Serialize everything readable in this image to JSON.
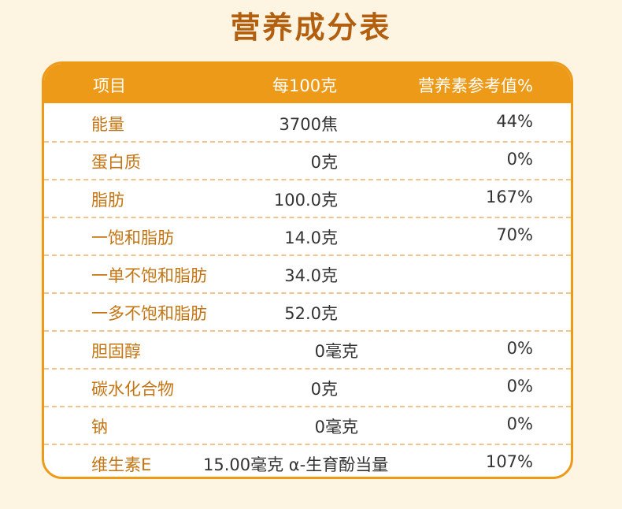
{
  "title": "营养成分表",
  "header": {
    "item": "项目",
    "per100": "每100克",
    "nrv": "营养素参考值%"
  },
  "rows": [
    {
      "name": "能量",
      "amount": "3700焦",
      "nrv": "44%"
    },
    {
      "name": "蛋白质",
      "amount": "0克",
      "nrv": "0%"
    },
    {
      "name": "脂肪",
      "amount": "100.0克",
      "nrv": "167%"
    },
    {
      "name": "一饱和脂肪",
      "amount": "14.0克",
      "nrv": "70%"
    },
    {
      "name": "一单不饱和脂肪",
      "amount": "34.0克",
      "nrv": ""
    },
    {
      "name": "一多不饱和脂肪",
      "amount": "52.0克",
      "nrv": ""
    },
    {
      "name": "胆固醇",
      "amount": "0毫克",
      "nrv": "0%"
    },
    {
      "name": "碳水化合物",
      "amount": "0克",
      "nrv": "0%"
    },
    {
      "name": "钠",
      "amount": "0毫克",
      "nrv": "0%"
    },
    {
      "name": "维生素E",
      "amount": "15.00毫克 α-生育酚当量",
      "nrv": "107%"
    }
  ]
}
